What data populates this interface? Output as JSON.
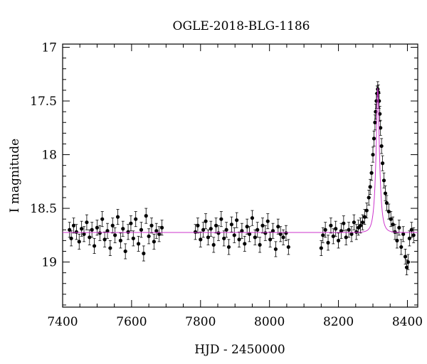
{
  "chart_data": {
    "type": "scatter",
    "title": "OGLE-2018-BLG-1186",
    "xlabel": "HJD - 2450000",
    "ylabel": "I magnitude",
    "xlim": [
      7400,
      8430
    ],
    "ylim": [
      19.42,
      16.97
    ],
    "y_inverted": true,
    "x_ticks": [
      7400,
      7600,
      7800,
      8000,
      8200,
      8400
    ],
    "y_ticks": [
      17,
      17.5,
      18,
      18.5,
      19
    ],
    "grid": false,
    "legend": "none",
    "colors": {
      "data": "#000000",
      "model": "#cc33cc"
    },
    "model": {
      "name": "",
      "baseline_mag": 18.725,
      "peak_hjd": 8314,
      "peak_mag": 17.38,
      "timescale_days": 10.5
    },
    "observing_seasons": [
      {
        "start": 7420,
        "end": 7690
      },
      {
        "start": 7785,
        "end": 8055
      },
      {
        "start": 8150,
        "end": 8420
      }
    ],
    "points": [
      [
        7420,
        18.7
      ],
      [
        7425,
        18.78
      ],
      [
        7432,
        18.66
      ],
      [
        7440,
        18.72
      ],
      [
        7448,
        18.81
      ],
      [
        7455,
        18.69
      ],
      [
        7462,
        18.74
      ],
      [
        7470,
        18.63
      ],
      [
        7478,
        18.77
      ],
      [
        7485,
        18.7
      ],
      [
        7492,
        18.85
      ],
      [
        7500,
        18.68
      ],
      [
        7508,
        18.73
      ],
      [
        7515,
        18.6
      ],
      [
        7522,
        18.79
      ],
      [
        7530,
        18.71
      ],
      [
        7538,
        18.87
      ],
      [
        7545,
        18.66
      ],
      [
        7552,
        18.75
      ],
      [
        7560,
        18.58
      ],
      [
        7568,
        18.8
      ],
      [
        7575,
        18.69
      ],
      [
        7582,
        18.9
      ],
      [
        7590,
        18.72
      ],
      [
        7598,
        18.64
      ],
      [
        7605,
        18.78
      ],
      [
        7612,
        18.6
      ],
      [
        7620,
        18.83
      ],
      [
        7628,
        18.7
      ],
      [
        7635,
        18.92
      ],
      [
        7642,
        18.57
      ],
      [
        7650,
        18.76
      ],
      [
        7658,
        18.66
      ],
      [
        7665,
        18.81
      ],
      [
        7672,
        18.71
      ],
      [
        7680,
        18.74
      ],
      [
        7688,
        18.68
      ],
      [
        7785,
        18.72
      ],
      [
        7792,
        18.66
      ],
      [
        7800,
        18.79
      ],
      [
        7808,
        18.7
      ],
      [
        7815,
        18.62
      ],
      [
        7822,
        18.77
      ],
      [
        7830,
        18.69
      ],
      [
        7838,
        18.84
      ],
      [
        7845,
        18.66
      ],
      [
        7852,
        18.73
      ],
      [
        7860,
        18.6
      ],
      [
        7868,
        18.78
      ],
      [
        7875,
        18.7
      ],
      [
        7882,
        18.86
      ],
      [
        7890,
        18.65
      ],
      [
        7898,
        18.75
      ],
      [
        7905,
        18.61
      ],
      [
        7912,
        18.79
      ],
      [
        7920,
        18.71
      ],
      [
        7928,
        18.83
      ],
      [
        7935,
        18.67
      ],
      [
        7942,
        18.74
      ],
      [
        7950,
        18.59
      ],
      [
        7958,
        18.77
      ],
      [
        7965,
        18.7
      ],
      [
        7972,
        18.84
      ],
      [
        7980,
        18.66
      ],
      [
        7988,
        18.73
      ],
      [
        7995,
        18.62
      ],
      [
        8002,
        18.79
      ],
      [
        8010,
        18.71
      ],
      [
        8018,
        18.88
      ],
      [
        8025,
        18.67
      ],
      [
        8032,
        18.74
      ],
      [
        8040,
        18.77
      ],
      [
        8048,
        18.73
      ],
      [
        8055,
        18.86
      ],
      [
        8150,
        18.87
      ],
      [
        8155,
        18.75
      ],
      [
        8162,
        18.7
      ],
      [
        8170,
        18.82
      ],
      [
        8178,
        18.66
      ],
      [
        8185,
        18.76
      ],
      [
        8192,
        18.69
      ],
      [
        8200,
        18.8
      ],
      [
        8208,
        18.71
      ],
      [
        8215,
        18.64
      ],
      [
        8222,
        18.77
      ],
      [
        8230,
        18.7
      ],
      [
        8238,
        18.74
      ],
      [
        8245,
        18.63
      ],
      [
        8252,
        18.72
      ],
      [
        8258,
        18.68
      ],
      [
        8264,
        18.66
      ],
      [
        8270,
        18.63
      ],
      [
        8276,
        18.58
      ],
      [
        8282,
        18.52
      ],
      [
        8288,
        18.4
      ],
      [
        8292,
        18.3
      ],
      [
        8296,
        18.17
      ],
      [
        8300,
        18.0
      ],
      [
        8303,
        17.85
      ],
      [
        8306,
        17.7
      ],
      [
        8308,
        17.6
      ],
      [
        8310,
        17.5
      ],
      [
        8312,
        17.43
      ],
      [
        8314,
        17.39
      ],
      [
        8316,
        17.42
      ],
      [
        8318,
        17.5
      ],
      [
        8320,
        17.62
      ],
      [
        8322,
        17.75
      ],
      [
        8325,
        17.92
      ],
      [
        8328,
        18.08
      ],
      [
        8332,
        18.24
      ],
      [
        8336,
        18.36
      ],
      [
        8340,
        18.45
      ],
      [
        8346,
        18.53
      ],
      [
        8352,
        18.6
      ],
      [
        8358,
        18.65
      ],
      [
        8364,
        18.72
      ],
      [
        8370,
        18.8
      ],
      [
        8376,
        18.68
      ],
      [
        8382,
        18.86
      ],
      [
        8388,
        18.74
      ],
      [
        8394,
        18.95
      ],
      [
        8398,
        19.05
      ],
      [
        8402,
        19.0
      ],
      [
        8406,
        18.78
      ],
      [
        8412,
        18.7
      ],
      [
        8418,
        18.75
      ]
    ]
  }
}
